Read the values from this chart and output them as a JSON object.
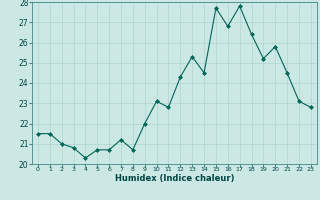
{
  "x": [
    0,
    1,
    2,
    3,
    4,
    5,
    6,
    7,
    8,
    9,
    10,
    11,
    12,
    13,
    14,
    15,
    16,
    17,
    18,
    19,
    20,
    21,
    22,
    23
  ],
  "y": [
    21.5,
    21.5,
    21.0,
    20.8,
    20.3,
    20.7,
    20.7,
    21.2,
    20.7,
    22.0,
    23.1,
    22.8,
    24.3,
    25.3,
    24.5,
    27.7,
    26.8,
    27.8,
    26.4,
    25.2,
    25.8,
    24.5,
    23.1,
    22.8
  ],
  "xlabel": "Humidex (Indice chaleur)",
  "bg_color": "#cce8e4",
  "grid_color": "#b0d4ce",
  "line_color": "#006655",
  "marker_color": "#006655",
  "ylim": [
    20,
    28
  ],
  "xlim": [
    -0.5,
    23.5
  ],
  "yticks": [
    20,
    21,
    22,
    23,
    24,
    25,
    26,
    27,
    28
  ],
  "xticks": [
    0,
    1,
    2,
    3,
    4,
    5,
    6,
    7,
    8,
    9,
    10,
    11,
    12,
    13,
    14,
    15,
    16,
    17,
    18,
    19,
    20,
    21,
    22,
    23
  ],
  "tick_color": "#004444",
  "xlabel_fontsize": 6.0,
  "ytick_fontsize": 5.5,
  "xtick_fontsize": 4.5
}
